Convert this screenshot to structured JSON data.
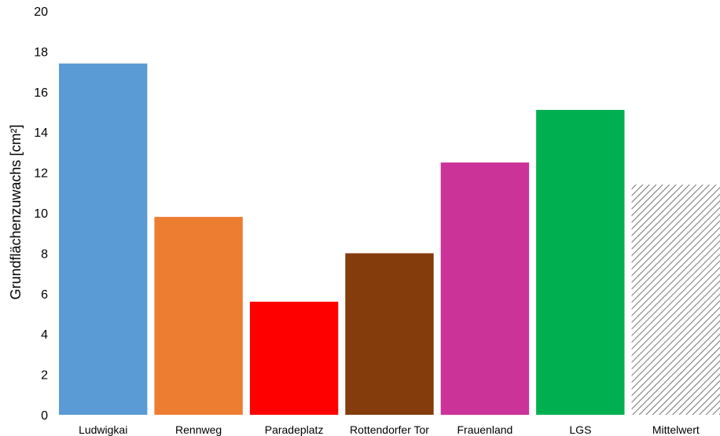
{
  "chart_data": {
    "type": "bar",
    "title": "",
    "xlabel": "",
    "ylabel": "Grundflächenzuwachs [cm²]",
    "ylim": [
      0,
      20
    ],
    "yticks": [
      0,
      2,
      4,
      6,
      8,
      10,
      12,
      14,
      16,
      18,
      20
    ],
    "grid": false,
    "legend": "none",
    "categories": [
      "Ludwigkai",
      "Rennweg",
      "Paradeplatz",
      "Rottendorfer Tor",
      "Frauenland",
      "LGS",
      "Mittelwert"
    ],
    "values": [
      17.4,
      9.8,
      5.6,
      8.0,
      12.5,
      15.1,
      11.4
    ],
    "colors": [
      "#5b9bd5",
      "#ed7d31",
      "#ff0000",
      "#843c0c",
      "#cc3399",
      "#00b050",
      "hatch"
    ]
  }
}
